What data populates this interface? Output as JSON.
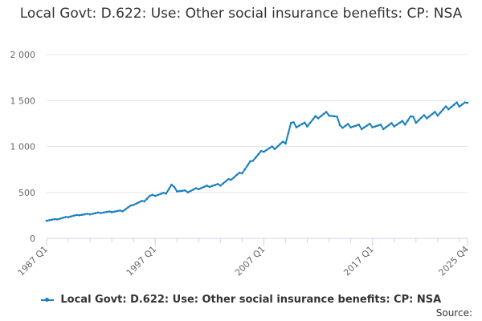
{
  "chart_data": {
    "type": "line",
    "title": "Local Govt: D.622: Use: Other social insurance benefits: CP: NSA",
    "xlabel": "",
    "ylabel": "",
    "ylim": [
      0,
      2000
    ],
    "yticks": [
      0,
      500,
      1000,
      1500,
      2000
    ],
    "ytick_labels": [
      "0",
      "500",
      "1 000",
      "1 500",
      "2 000"
    ],
    "xticks": [
      {
        "label": "1987 Q1",
        "t": 1987.0
      },
      {
        "label": "1997 Q1",
        "t": 1997.0
      },
      {
        "label": "2007 Q1",
        "t": 2007.0
      },
      {
        "label": "2017 Q1",
        "t": 2017.0
      },
      {
        "label": "2025 Q4",
        "t": 2025.75
      }
    ],
    "xlim": [
      1987.0,
      2025.75
    ],
    "series": [
      {
        "name": "Local Govt: D.622: Use: Other social insurance benefits: CP: NSA",
        "color": "#1a7fbf",
        "points": [
          [
            1987.0,
            195
          ],
          [
            1988.0,
            210
          ],
          [
            1989.0,
            235
          ],
          [
            1990.0,
            255
          ],
          [
            1991.0,
            265
          ],
          [
            1992.0,
            280
          ],
          [
            1993.0,
            290
          ],
          [
            1994.0,
            300
          ],
          [
            1995.0,
            370
          ],
          [
            1996.0,
            410
          ],
          [
            1996.5,
            460
          ],
          [
            1997.5,
            480
          ],
          [
            1998.0,
            495
          ],
          [
            1998.5,
            580
          ],
          [
            1999.0,
            520
          ],
          [
            2000.0,
            510
          ],
          [
            2001.0,
            545
          ],
          [
            2002.0,
            570
          ],
          [
            2003.0,
            585
          ],
          [
            2004.0,
            650
          ],
          [
            2005.0,
            720
          ],
          [
            2006.0,
            860
          ],
          [
            2007.0,
            960
          ],
          [
            2008.0,
            990
          ],
          [
            2009.0,
            1050
          ],
          [
            2009.5,
            1250
          ],
          [
            2010.0,
            1230
          ],
          [
            2011.0,
            1240
          ],
          [
            2012.0,
            1330
          ],
          [
            2013.0,
            1360
          ],
          [
            2013.75,
            1300
          ],
          [
            2014.25,
            1210
          ],
          [
            2015.0,
            1230
          ],
          [
            2016.0,
            1210
          ],
          [
            2017.0,
            1230
          ],
          [
            2018.0,
            1210
          ],
          [
            2019.0,
            1240
          ],
          [
            2020.0,
            1260
          ],
          [
            2020.5,
            1320
          ],
          [
            2021.0,
            1280
          ],
          [
            2022.0,
            1330
          ],
          [
            2023.0,
            1360
          ],
          [
            2024.0,
            1430
          ],
          [
            2025.0,
            1460
          ],
          [
            2025.75,
            1475
          ]
        ]
      }
    ]
  },
  "legend": {
    "label": "Local Govt: D.622: Use: Other social insurance benefits: CP: NSA"
  },
  "source_label": "Source:"
}
